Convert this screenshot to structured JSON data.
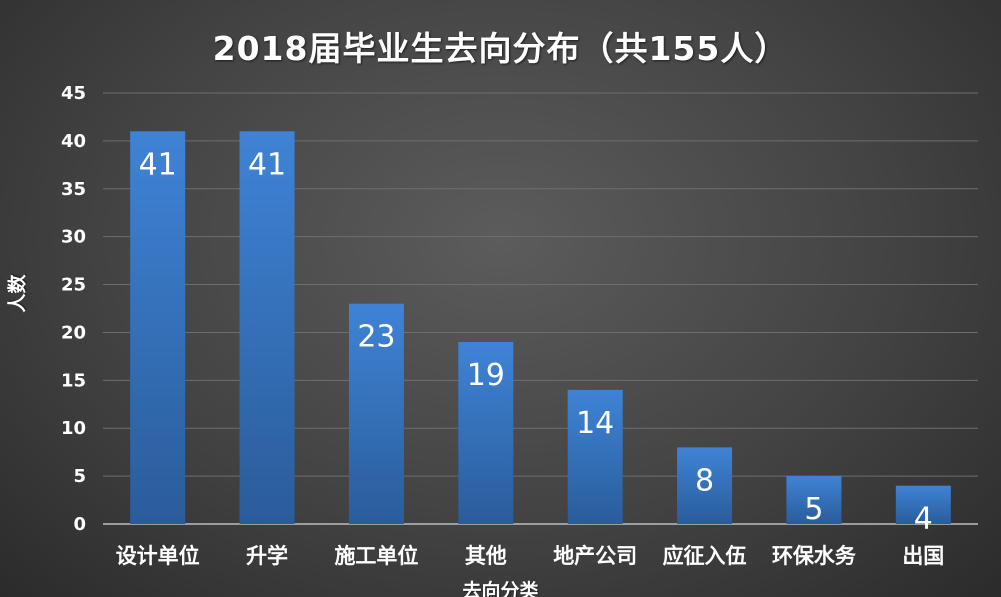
{
  "chart_data": {
    "type": "bar",
    "title": "2018届毕业生去向分布（共155人）",
    "xlabel": "去向分类",
    "ylabel": "人数",
    "categories": [
      "设计单位",
      "升学",
      "施工单位",
      "其他",
      "地产公司",
      "应征入伍",
      "环保水务",
      "出国"
    ],
    "values": [
      41,
      41,
      23,
      19,
      14,
      8,
      5,
      4
    ],
    "ylim": [
      0,
      45
    ],
    "yticks": [
      0,
      5,
      10,
      15,
      20,
      25,
      30,
      35,
      40,
      45
    ],
    "grid": true,
    "legend": "none",
    "data_labels": "inside-top",
    "bar_color_top": "#3f83d6",
    "bar_color_bottom": "#2a5c9a",
    "background_color": "#404040"
  }
}
